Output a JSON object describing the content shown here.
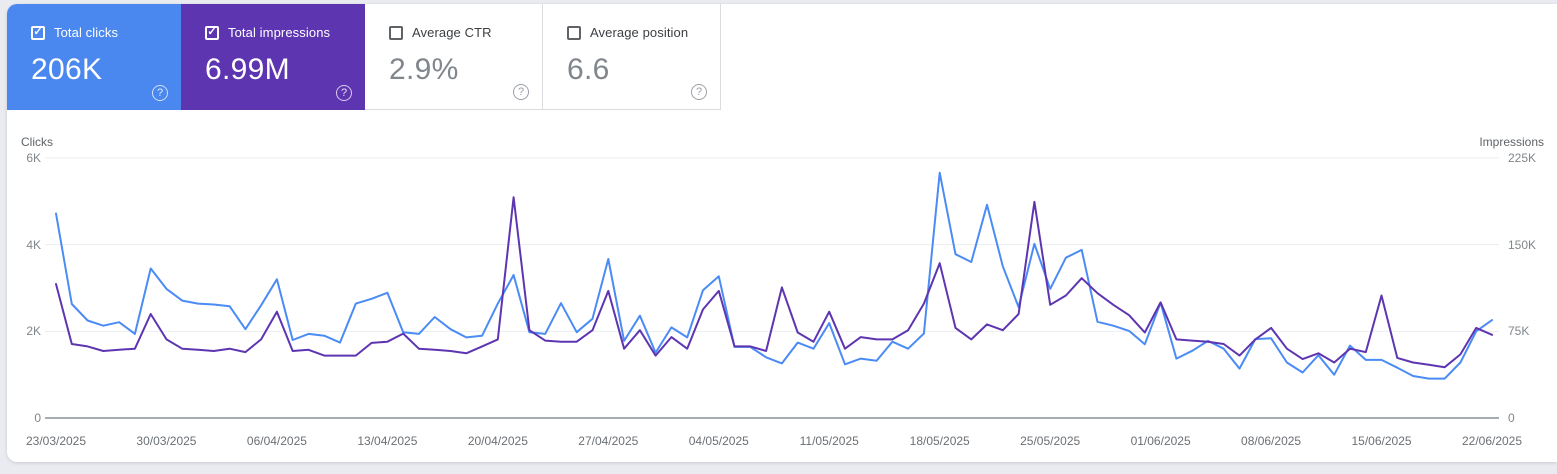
{
  "cards": [
    {
      "label": "Total clicks",
      "value": "206K",
      "checked": true,
      "bg": "#4a87ee"
    },
    {
      "label": "Total impressions",
      "value": "6.99M",
      "checked": true,
      "bg": "#5e35b1"
    },
    {
      "label": "Average CTR",
      "value": "2.9%",
      "checked": false,
      "bg": "#ffffff"
    },
    {
      "label": "Average position",
      "value": "6.6",
      "checked": false,
      "bg": "#ffffff"
    }
  ],
  "icons": {
    "help": "?",
    "check": "✓"
  },
  "chart_data": {
    "type": "line",
    "frequency": "daily",
    "start_date": "23/03/2025",
    "end_date": "22/06/2025",
    "x_tick_labels": [
      "23/03/2025",
      "30/03/2025",
      "06/04/2025",
      "13/04/2025",
      "20/04/2025",
      "27/04/2025",
      "04/05/2025",
      "11/05/2025",
      "18/05/2025",
      "25/05/2025",
      "01/06/2025",
      "08/06/2025",
      "15/06/2025",
      "22/06/2025"
    ],
    "x_tick_positions": [
      0,
      7,
      14,
      21,
      28,
      35,
      42,
      49,
      56,
      63,
      70,
      77,
      84,
      91
    ],
    "left_axis": {
      "label": "Clicks",
      "ticks": [
        "6K",
        "4K",
        "2K",
        "0"
      ],
      "max": 6000,
      "min": 0
    },
    "right_axis": {
      "label": "Impressions",
      "ticks": [
        "225K",
        "150K",
        "75K",
        "0"
      ],
      "max": 225000,
      "min": 0
    },
    "grid": "horizontal",
    "legend_position": "none",
    "series": [
      {
        "name": "Total clicks",
        "axis": "left",
        "color": "#4b8bf5",
        "values": [
          4720,
          2630,
          2250,
          2130,
          2210,
          1940,
          3450,
          2980,
          2710,
          2640,
          2620,
          2580,
          2050,
          2600,
          3200,
          1800,
          1940,
          1900,
          1740,
          2640,
          2750,
          2890,
          1980,
          1940,
          2330,
          2050,
          1860,
          1900,
          2640,
          3300,
          1980,
          1940,
          2650,
          1980,
          2290,
          3670,
          1780,
          2360,
          1510,
          2090,
          1860,
          2950,
          3270,
          1640,
          1640,
          1400,
          1260,
          1740,
          1600,
          2190,
          1240,
          1370,
          1320,
          1760,
          1600,
          1950,
          5660,
          3780,
          3600,
          4920,
          3500,
          2560,
          4020,
          2980,
          3700,
          3880,
          2220,
          2130,
          2010,
          1700,
          2660,
          1370,
          1550,
          1780,
          1600,
          1140,
          1820,
          1840,
          1280,
          1050,
          1450,
          1000,
          1670,
          1340,
          1340,
          1160,
          970,
          910,
          910,
          1280,
          2000,
          2260
        ]
      },
      {
        "name": "Total impressions",
        "axis": "right",
        "color": "#5e35b1",
        "values": [
          116000,
          64000,
          62000,
          58000,
          59000,
          60000,
          90000,
          68000,
          60000,
          59000,
          58000,
          60000,
          57000,
          68000,
          92000,
          58000,
          59000,
          54000,
          54000,
          54000,
          65000,
          66000,
          73000,
          60000,
          59000,
          58000,
          56000,
          62000,
          68000,
          191000,
          76000,
          67000,
          66000,
          66000,
          76000,
          110000,
          60000,
          76000,
          54000,
          70000,
          60000,
          94000,
          110000,
          62000,
          62000,
          58000,
          113000,
          74000,
          66000,
          92000,
          60000,
          70000,
          68000,
          68000,
          76000,
          99000,
          134000,
          78000,
          68000,
          81000,
          76000,
          90000,
          187000,
          98000,
          106000,
          121000,
          108000,
          98000,
          89000,
          74000,
          100000,
          68000,
          67000,
          66000,
          64000,
          54000,
          68000,
          78000,
          60000,
          51000,
          56000,
          48000,
          60000,
          57000,
          106000,
          52000,
          48000,
          46000,
          44000,
          55000,
          78000,
          72000
        ]
      }
    ]
  }
}
